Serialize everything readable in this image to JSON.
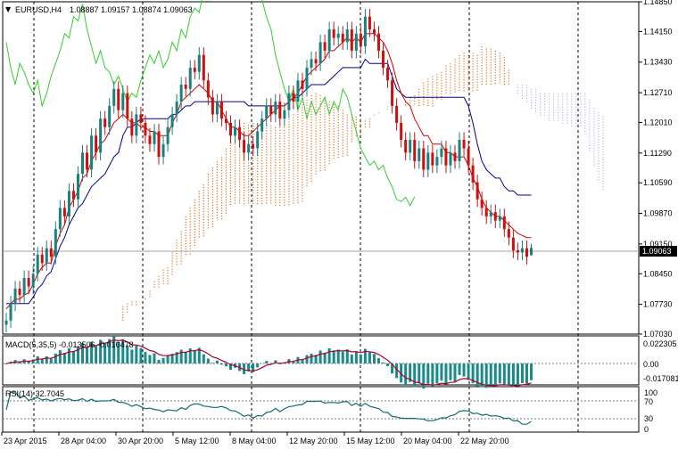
{
  "header": {
    "symbol": "EURUSD,H4",
    "ohlc": "1.08887 1.09157 1.08874 1.09063"
  },
  "colors": {
    "bull_candle": "#1a8080",
    "bear_candle": "#cc1010",
    "kijun": "#00008b",
    "tenkan": "#d00000",
    "chikou": "#32cd32",
    "cloud_up": "#e07020",
    "cloud_down": "#b8b8d8",
    "macd_hist": "#1a8a8a",
    "macd_signal": "#b0002a",
    "rsi_line": "#0e6e6e",
    "grid": "#000000",
    "current_price_line": "#a0a0a0"
  },
  "main": {
    "axis_ticks": [
      "1.14850",
      "1.14150",
      "1.13430",
      "1.12710",
      "1.12010",
      "1.11290",
      "1.10590",
      "1.09870",
      "1.09150",
      "1.08450",
      "1.07730",
      "1.07030"
    ],
    "current_price": "1.09063"
  },
  "macd": {
    "label": "MACD(5,35,5) -0.013506 -0.010478",
    "axis_ticks": [
      "0.022305",
      "0.00",
      "-0.017081"
    ]
  },
  "rsi": {
    "label": "RSI(14) 32.7045",
    "axis_ticks": [
      "100",
      "70",
      "30",
      "0"
    ]
  },
  "time_axis": {
    "labels": [
      "23 Apr 2015",
      "28 Apr 04:00",
      "30 Apr 20:00",
      "5 May 12:00",
      "8 May 04:00",
      "12 May 20:00",
      "15 May 12:00",
      "20 May 04:00",
      "22 May 20:00"
    ]
  },
  "chart_data": {
    "type": "candlestick",
    "instrument": "EURUSD",
    "timeframe": "H4",
    "last_bar": {
      "open": 1.08887,
      "high": 1.09157,
      "low": 1.08874,
      "close": 1.09063
    },
    "price_range": [
      1.0703,
      1.1485
    ],
    "closes": [
      1.0735,
      1.0775,
      1.081,
      1.0795,
      1.0835,
      1.0815,
      1.0845,
      1.089,
      1.087,
      1.0905,
      1.0885,
      1.095,
      1.1,
      1.098,
      1.104,
      1.102,
      1.108,
      1.113,
      1.109,
      1.117,
      1.113,
      1.121,
      1.119,
      1.124,
      1.128,
      1.123,
      1.127,
      1.121,
      1.117,
      1.122,
      1.12,
      1.117,
      1.115,
      1.118,
      1.112,
      1.115,
      1.119,
      1.122,
      1.125,
      1.129,
      1.128,
      1.133,
      1.132,
      1.136,
      1.13,
      1.126,
      1.122,
      1.125,
      1.121,
      1.12,
      1.117,
      1.119,
      1.116,
      1.113,
      1.115,
      1.114,
      1.118,
      1.121,
      1.124,
      1.122,
      1.125,
      1.121,
      1.123,
      1.127,
      1.125,
      1.13,
      1.128,
      1.133,
      1.135,
      1.134,
      1.139,
      1.137,
      1.142,
      1.14,
      1.141,
      1.139,
      1.142,
      1.137,
      1.141,
      1.138,
      1.145,
      1.142,
      1.141,
      1.137,
      1.133,
      1.13,
      1.124,
      1.12,
      1.116,
      1.113,
      1.116,
      1.111,
      1.114,
      1.109,
      1.113,
      1.11,
      1.112,
      1.114,
      1.11,
      1.113,
      1.111,
      1.116,
      1.114,
      1.11,
      1.106,
      1.102,
      1.1,
      1.098,
      1.099,
      1.097,
      1.098,
      1.095,
      1.093,
      1.09,
      1.0895,
      1.0905,
      1.0885,
      1.0906
    ],
    "kijun": [
      1.0775,
      1.0775,
      1.0775,
      1.0775,
      1.0775,
      1.0775,
      1.079,
      1.081,
      1.082,
      1.084,
      1.085,
      1.088,
      1.091,
      1.093,
      1.096,
      1.098,
      1.1,
      1.101,
      1.103,
      1.105,
      1.106,
      1.107,
      1.108,
      1.11,
      1.112,
      1.113,
      1.117,
      1.119,
      1.119,
      1.12,
      1.121,
      1.121,
      1.121,
      1.121,
      1.121,
      1.121,
      1.121,
      1.122,
      1.122,
      1.123,
      1.124,
      1.124,
      1.125,
      1.125,
      1.125,
      1.125,
      1.125,
      1.125,
      1.125,
      1.125,
      1.125,
      1.125,
      1.125,
      1.125,
      1.124,
      1.124,
      1.124,
      1.124,
      1.124,
      1.124,
      1.124,
      1.124,
      1.124,
      1.125,
      1.126,
      1.126,
      1.127,
      1.128,
      1.129,
      1.129,
      1.129,
      1.129,
      1.13,
      1.131,
      1.132,
      1.133,
      1.133,
      1.133,
      1.133,
      1.133,
      1.135,
      1.134,
      1.134,
      1.134,
      1.134,
      1.134,
      1.131,
      1.128,
      1.127,
      1.126,
      1.126,
      1.126,
      1.126,
      1.126,
      1.126,
      1.126,
      1.126,
      1.126,
      1.126,
      1.126,
      1.126,
      1.126,
      1.126,
      1.124,
      1.12,
      1.115,
      1.111,
      1.109,
      1.108,
      1.107,
      1.107,
      1.105,
      1.104,
      1.104,
      1.103,
      1.103,
      1.103,
      1.103
    ],
    "tenkan": [
      1.0762,
      1.0775,
      1.0785,
      1.0785,
      1.0795,
      1.08,
      1.082,
      1.0845,
      1.086,
      1.087,
      1.087,
      1.091,
      1.094,
      1.096,
      1.1,
      1.102,
      1.104,
      1.107,
      1.108,
      1.111,
      1.113,
      1.115,
      1.116,
      1.118,
      1.12,
      1.121,
      1.122,
      1.121,
      1.12,
      1.12,
      1.119,
      1.119,
      1.118,
      1.118,
      1.117,
      1.117,
      1.117,
      1.12,
      1.122,
      1.125,
      1.126,
      1.127,
      1.128,
      1.129,
      1.128,
      1.127,
      1.125,
      1.125,
      1.123,
      1.121,
      1.119,
      1.119,
      1.118,
      1.117,
      1.117,
      1.118,
      1.119,
      1.12,
      1.121,
      1.122,
      1.123,
      1.124,
      1.124,
      1.125,
      1.126,
      1.127,
      1.129,
      1.131,
      1.132,
      1.133,
      1.134,
      1.135,
      1.137,
      1.137,
      1.138,
      1.139,
      1.14,
      1.139,
      1.14,
      1.139,
      1.141,
      1.141,
      1.141,
      1.14,
      1.139,
      1.137,
      1.134,
      1.13,
      1.127,
      1.125,
      1.124,
      1.121,
      1.119,
      1.117,
      1.117,
      1.115,
      1.115,
      1.115,
      1.113,
      1.113,
      1.112,
      1.112,
      1.112,
      1.11,
      1.107,
      1.105,
      1.102,
      1.1,
      1.099,
      1.098,
      1.098,
      1.097,
      1.096,
      1.095,
      1.094,
      1.0935,
      1.093,
      1.093
    ]
  }
}
